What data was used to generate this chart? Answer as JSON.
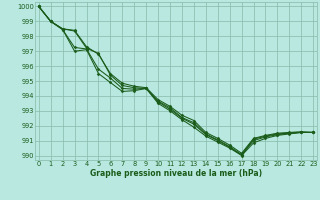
{
  "xlabel": "Graphe pression niveau de la mer (hPa)",
  "background_color": "#b8e8e0",
  "grid_color": "#88bbaa",
  "line_color": "#1a5c1a",
  "ylim": [
    989.7,
    1000.3
  ],
  "xlim": [
    -0.3,
    23.3
  ],
  "yticks": [
    990,
    991,
    992,
    993,
    994,
    995,
    996,
    997,
    998,
    999,
    1000
  ],
  "xticks": [
    0,
    1,
    2,
    3,
    4,
    5,
    6,
    7,
    8,
    9,
    10,
    11,
    12,
    13,
    14,
    15,
    16,
    17,
    18,
    19,
    20,
    21,
    22,
    23
  ],
  "series": [
    [
      1000.0,
      999.0,
      998.5,
      998.4,
      997.3,
      996.8,
      995.5,
      994.85,
      994.65,
      994.55,
      993.75,
      993.3,
      992.7,
      992.35,
      991.55,
      991.15,
      990.7,
      990.15,
      991.15,
      991.35,
      991.5,
      991.55,
      991.6,
      991.55
    ],
    [
      1000.0,
      999.0,
      998.5,
      998.35,
      997.2,
      996.85,
      995.4,
      994.7,
      994.55,
      994.5,
      993.65,
      993.2,
      992.55,
      992.2,
      991.45,
      991.05,
      990.6,
      990.05,
      991.1,
      991.3,
      991.45,
      991.5,
      991.55,
      991.55
    ],
    [
      1000.0,
      999.0,
      998.45,
      997.25,
      997.15,
      995.8,
      995.2,
      994.5,
      994.45,
      994.5,
      993.6,
      993.1,
      992.5,
      992.1,
      991.4,
      991.0,
      990.55,
      990.05,
      991.0,
      991.25,
      991.4,
      991.5,
      991.55,
      991.55
    ],
    [
      1000.0,
      999.0,
      998.45,
      997.0,
      997.1,
      995.5,
      994.9,
      994.3,
      994.35,
      994.5,
      993.5,
      993.0,
      992.4,
      991.9,
      991.3,
      990.9,
      990.5,
      990.0,
      990.85,
      991.15,
      991.35,
      991.45,
      991.55,
      991.55
    ]
  ]
}
